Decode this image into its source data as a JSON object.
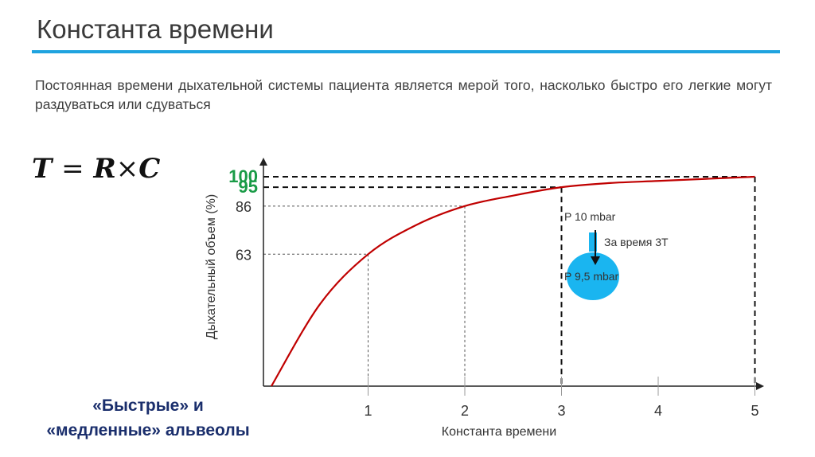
{
  "slide": {
    "title": "Константа времени",
    "subtitle": "Постоянная времени дыхательной системы пациента является мерой того, насколько быстро его легкие могут раздуваться или сдуваться",
    "formula": {
      "T": "T",
      "eq": "=",
      "R": "R",
      "times": "×",
      "C": "C"
    },
    "alveoli_line1": "«Быстрые» и",
    "alveoli_line2": "«медленные» альвеолы",
    "accent_color": "#1fa3df"
  },
  "chart_data": {
    "type": "line",
    "xlabel": "Константа времени",
    "ylabel": "Дыхательный объем (%)",
    "xlim": [
      0,
      5
    ],
    "ylim": [
      0,
      100
    ],
    "x_ticks": [
      "1",
      "2",
      "3",
      "4",
      "5"
    ],
    "y_ticks": [
      {
        "value": 63,
        "label": "63",
        "highlight": false
      },
      {
        "value": 86,
        "label": "86",
        "highlight": false
      },
      {
        "value": 95,
        "label": "95",
        "highlight": true
      },
      {
        "value": 100,
        "label": "100",
        "highlight": true
      }
    ],
    "series": [
      {
        "x": [
          0,
          0.5,
          1,
          1.5,
          2,
          2.5,
          3,
          3.5,
          4,
          4.5,
          5
        ],
        "y": [
          0,
          39,
          63,
          77,
          86,
          91,
          95,
          97,
          98,
          99,
          100
        ],
        "color": "#c00000"
      }
    ],
    "reference_points": [
      {
        "x": 1,
        "y": 63,
        "style": "thin"
      },
      {
        "x": 2,
        "y": 86,
        "style": "thin"
      },
      {
        "x": 3,
        "y": 95,
        "style": "bold"
      },
      {
        "x": 5,
        "y": 100,
        "style": "bold"
      }
    ],
    "highlight_color": "#1a9b47",
    "annotation": {
      "pressure_top": "P 10  mbar",
      "arrow_label": "За время 3T",
      "pressure_bottom": "P 9,5  mbar",
      "balloon_color": "#1ab5f0"
    }
  }
}
